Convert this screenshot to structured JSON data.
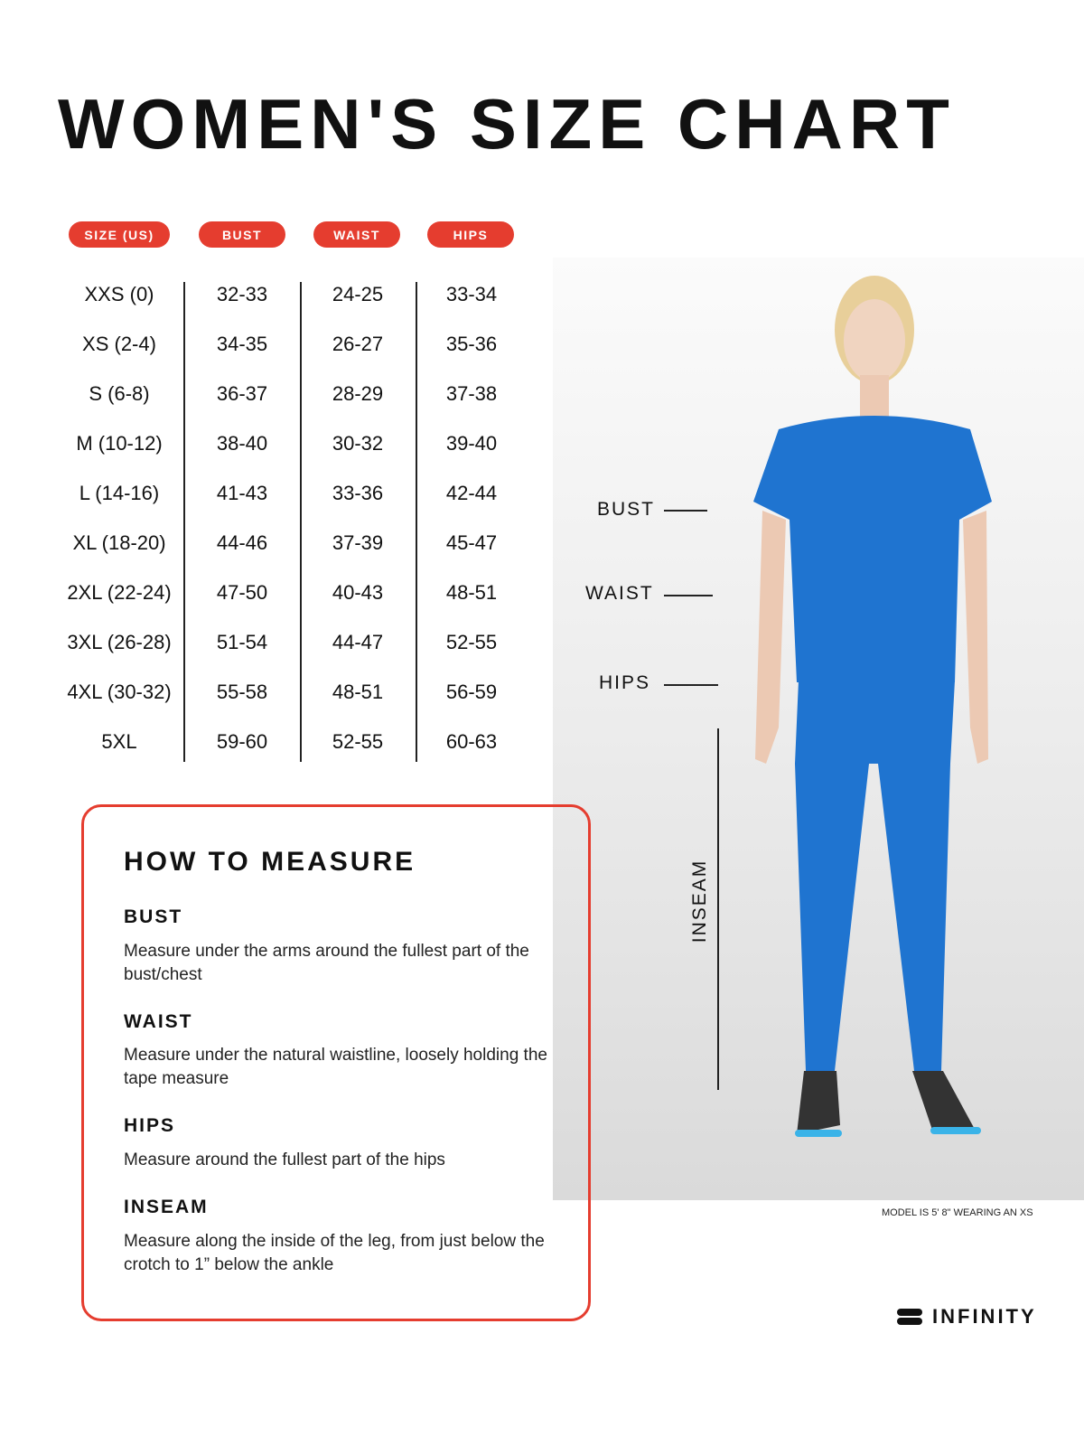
{
  "title": "WOMEN'S SIZE CHART",
  "headers": [
    "SIZE (US)",
    "BUST",
    "WAIST",
    "HIPS"
  ],
  "rows": [
    [
      "XXS (0)",
      "32-33",
      "24-25",
      "33-34"
    ],
    [
      "XS (2-4)",
      "34-35",
      "26-27",
      "35-36"
    ],
    [
      "S (6-8)",
      "36-37",
      "28-29",
      "37-38"
    ],
    [
      "M (10-12)",
      "38-40",
      "30-32",
      "39-40"
    ],
    [
      "L (14-16)",
      "41-43",
      "33-36",
      "42-44"
    ],
    [
      "XL (18-20)",
      "44-46",
      "37-39",
      "45-47"
    ],
    [
      "2XL (22-24)",
      "47-50",
      "40-43",
      "48-51"
    ],
    [
      "3XL (26-28)",
      "51-54",
      "44-47",
      "52-55"
    ],
    [
      "4XL (30-32)",
      "55-58",
      "48-51",
      "56-59"
    ],
    [
      "5XL",
      "59-60",
      "52-55",
      "60-63"
    ]
  ],
  "figure_labels": {
    "bust": "BUST",
    "waist": "WAIST",
    "hips": "HIPS",
    "inseam": "INSEAM"
  },
  "model_note": "MODEL IS 5' 8\" WEARING AN XS",
  "brand": "INFINITY",
  "how_to": {
    "title": "HOW TO MEASURE",
    "items": [
      {
        "label": "BUST",
        "text": "Measure under the arms around the fullest part of the bust/chest"
      },
      {
        "label": "WAIST",
        "text": "Measure under the natural waistline, loosely holding the tape measure"
      },
      {
        "label": "HIPS",
        "text": "Measure around the fullest part of the hips"
      },
      {
        "label": "INSEAM",
        "text": "Measure along the inside of the leg, from just below the crotch to 1” below the ankle"
      }
    ]
  },
  "colors": {
    "accent": "#e53d2f",
    "garment": "#1f74d0"
  }
}
